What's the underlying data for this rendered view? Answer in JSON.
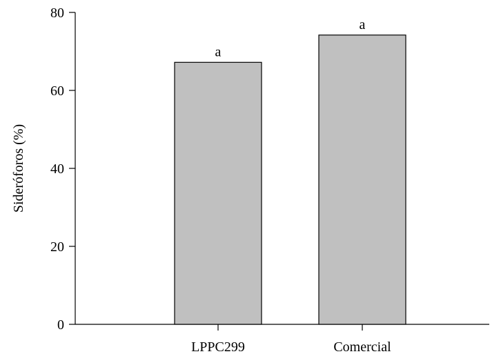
{
  "chart_data": {
    "type": "bar",
    "categories": [
      "LPPC299",
      "Comercial"
    ],
    "values": [
      67.2,
      74.2
    ],
    "annotations": [
      "a",
      "a"
    ],
    "title": "",
    "xlabel": "",
    "ylabel": "Sideróforos (%)",
    "ylim": [
      0,
      80
    ],
    "yticks": [
      0,
      20,
      40,
      60,
      80
    ],
    "grid": false,
    "legend": "none",
    "bar_color": "#c0c0c0"
  }
}
